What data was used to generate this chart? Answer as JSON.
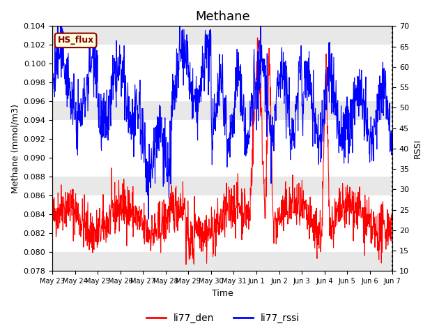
{
  "title": "Methane",
  "ylabel_left": "Methane (mmol/m3)",
  "ylabel_right": "RSSI",
  "xlabel": "Time",
  "ylim_left": [
    0.078,
    0.104
  ],
  "ylim_right": [
    10,
    70
  ],
  "xtick_labels": [
    "May 23",
    "May 24",
    "May 25",
    "May 26",
    "May 27",
    "May 28",
    "May 29",
    "May 30",
    "May 31",
    "Jun 1",
    "Jun 2",
    "Jun 3",
    "Jun 4",
    "Jun 5",
    "Jun 6",
    "Jun 7"
  ],
  "xtick_positions": [
    0,
    1,
    2,
    3,
    4,
    5,
    6,
    7,
    8,
    9,
    10,
    11,
    12,
    13,
    14,
    15
  ],
  "yticks_left": [
    0.078,
    0.08,
    0.082,
    0.084,
    0.086,
    0.088,
    0.09,
    0.092,
    0.094,
    0.096,
    0.098,
    0.1,
    0.102,
    0.104
  ],
  "yticks_right": [
    10,
    15,
    20,
    25,
    30,
    35,
    40,
    45,
    50,
    55,
    60,
    65,
    70
  ],
  "legend_labels": [
    "li77_den",
    "li77_rssi"
  ],
  "line_colors": [
    "red",
    "blue"
  ],
  "hs_flux_label": "HS_flux",
  "bg_band_color": "#e8e8e8",
  "title_fontsize": 13,
  "axis_label_fontsize": 9,
  "tick_fontsize": 8,
  "legend_fontsize": 10
}
